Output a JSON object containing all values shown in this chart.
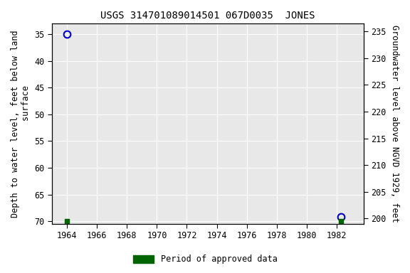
{
  "title": "USGS 314701089014501 067D0035  JONES",
  "data_points": [
    {
      "year": 1964.0,
      "depth": 35.0
    },
    {
      "year": 1982.3,
      "depth": 69.2
    }
  ],
  "green_squares": [
    {
      "year": 1964.0,
      "depth": 70.0
    },
    {
      "year": 1982.3,
      "depth": 70.0
    }
  ],
  "xlim": [
    1963.0,
    1983.8
  ],
  "xticks": [
    1964,
    1966,
    1968,
    1970,
    1972,
    1974,
    1976,
    1978,
    1980,
    1982
  ],
  "ylim_left": [
    70.5,
    33.0
  ],
  "ylim_right": [
    199.0,
    236.5
  ],
  "yticks_left": [
    35,
    40,
    45,
    50,
    55,
    60,
    65,
    70
  ],
  "yticks_right": [
    200,
    205,
    210,
    215,
    220,
    225,
    230,
    235
  ],
  "ylabel_left": "Depth to water level, feet below land\n        surface",
  "ylabel_right": "Groundwater level above NGVD 1929, feet",
  "legend_label": "Period of approved data",
  "bg_color": "#ffffff",
  "plot_bg_color": "#e8e8e8",
  "grid_color": "#ffffff",
  "point_color": "#0000cc",
  "square_color": "#006400",
  "title_fontsize": 10,
  "axis_fontsize": 8.5,
  "tick_fontsize": 8.5
}
